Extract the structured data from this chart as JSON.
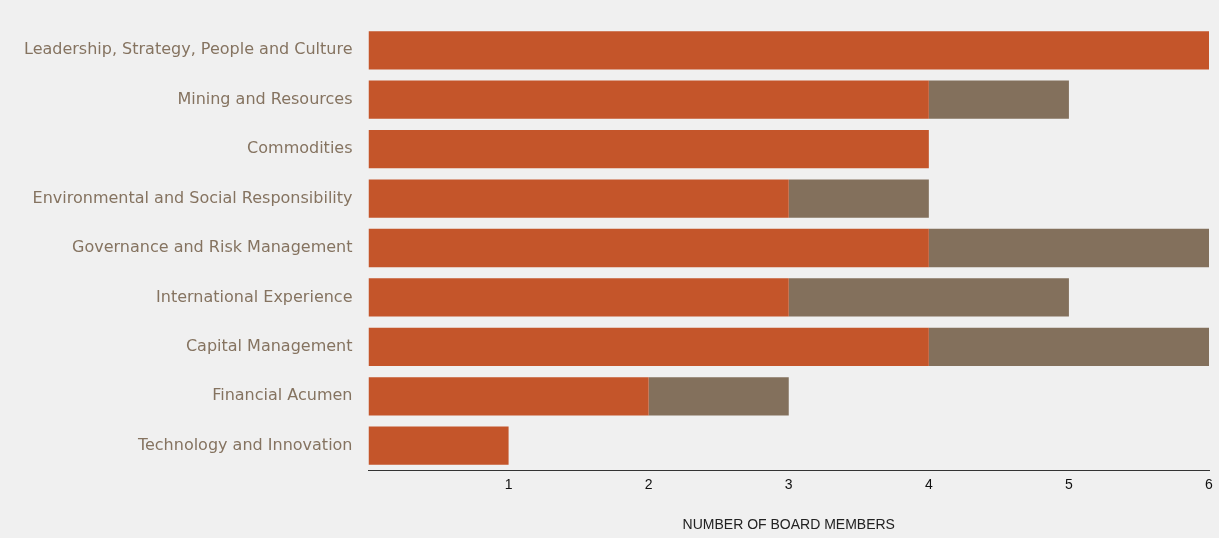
{
  "chart_data": {
    "type": "bar",
    "orientation": "horizontal",
    "stacked": true,
    "xlabel": "NUMBER OF BOARD MEMBERS",
    "categories": [
      "Leadership, Strategy, People and Culture",
      "Mining and Resources",
      "Commodities",
      "Environmental and Social Responsibility",
      "Governance and Risk Management",
      "International Experience",
      "Capital Management",
      "Financial Acumen",
      "Technology and Innovation"
    ],
    "series": [
      {
        "color": "#c4552a",
        "values": [
          6,
          4,
          4,
          3,
          4,
          3,
          4,
          2,
          1
        ]
      },
      {
        "color": "#83705c",
        "values": [
          null,
          1,
          null,
          1,
          2,
          2,
          2,
          1,
          null
        ]
      }
    ],
    "xlim": [
      0,
      6
    ],
    "xticks": [
      1,
      2,
      3,
      4,
      5,
      6
    ],
    "grid": false,
    "legend": false
  }
}
